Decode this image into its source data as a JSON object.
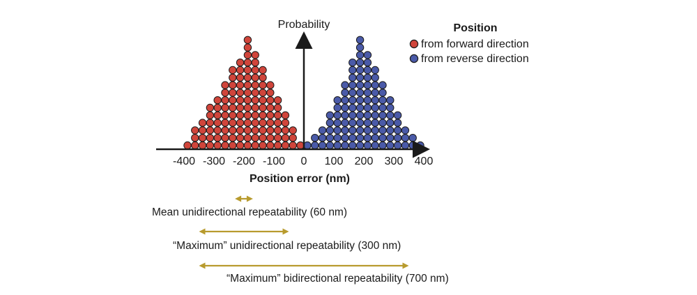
{
  "diagram": {
    "y_axis_label": "Probability",
    "x_axis_label": "Position error (nm)",
    "x_ticks": [
      "-400",
      "-300",
      "-200",
      "-100",
      "0",
      "100",
      "200",
      "300",
      "400"
    ],
    "x_tick_values": [
      -400,
      -300,
      -200,
      -100,
      0,
      100,
      200,
      300,
      400
    ],
    "legend": {
      "title": "Position",
      "items": [
        {
          "label": "from forward direction",
          "color": "#d0453b"
        },
        {
          "label": "from reverse direction",
          "color": "#4a5aa8"
        }
      ]
    },
    "distributions": [
      {
        "direction": "forward",
        "peak_nm": -200,
        "counts_per_column": [
          1,
          3,
          4,
          6,
          7,
          9,
          11,
          12,
          15,
          13,
          11,
          9,
          7,
          5,
          3,
          1
        ],
        "color": "#d0453b"
      },
      {
        "direction": "reverse",
        "peak_nm": 200,
        "counts_per_column": [
          1,
          2,
          3,
          5,
          7,
          9,
          12,
          15,
          13,
          11,
          9,
          7,
          5,
          3,
          2,
          1
        ],
        "color": "#4a5aa8"
      }
    ],
    "repeatability": [
      {
        "label": "Mean unidirectional repeatability (60 nm)",
        "from_nm": -230,
        "to_nm": -170
      },
      {
        "label": "“Maximum” unidirectional repeatability (300 nm)",
        "from_nm": -350,
        "to_nm": -50
      },
      {
        "label": "“Maximum” bidirectional repeatability (700 nm)",
        "from_nm": -350,
        "to_nm": 350
      }
    ],
    "arrow_color": "#b89b2e"
  }
}
